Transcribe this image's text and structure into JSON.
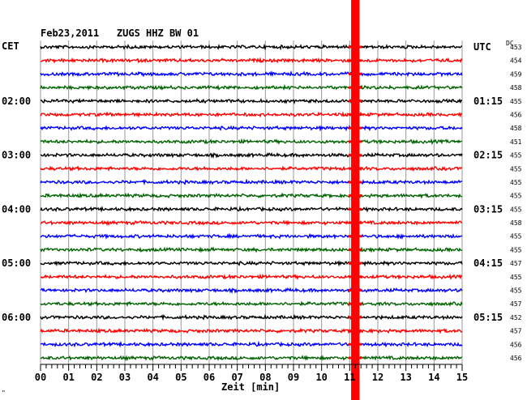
{
  "chart_data": {
    "type": "line",
    "title": "Feb23,2011   ZUGS HHZ BW 01",
    "left_axis_label": "CET",
    "right_axis_label": "UTC",
    "dc_label": "DC",
    "xlabel": "Zeit [min]",
    "xlim": [
      0,
      15
    ],
    "x_ticks": [
      "00",
      "01",
      "02",
      "03",
      "04",
      "05",
      "06",
      "07",
      "08",
      "09",
      "10",
      "11",
      "12",
      "13",
      "14",
      "15"
    ],
    "minor_ticks_per_minute": 5,
    "grid": true,
    "trace_count": 24,
    "trace_colors": [
      "#000000",
      "#ff0000",
      "#0000ff",
      "#006400"
    ],
    "cet_labels": [
      {
        "trace": 4,
        "text": "02:00"
      },
      {
        "trace": 8,
        "text": "03:00"
      },
      {
        "trace": 12,
        "text": "04:00"
      },
      {
        "trace": 16,
        "text": "05:00"
      },
      {
        "trace": 20,
        "text": "06:00"
      }
    ],
    "utc_labels": [
      {
        "trace": 0,
        "text": "UTC"
      },
      {
        "trace": 4,
        "text": "01:15"
      },
      {
        "trace": 8,
        "text": "02:15"
      },
      {
        "trace": 12,
        "text": "03:15"
      },
      {
        "trace": 16,
        "text": "04:15"
      },
      {
        "trace": 20,
        "text": "05:15"
      }
    ],
    "dc_values": [
      "453",
      "454",
      "459",
      "458",
      "455",
      "456",
      "458",
      "451",
      "455",
      "455",
      "455",
      "455",
      "455",
      "458",
      "455",
      "455",
      "457",
      "455",
      "455",
      "457",
      "452",
      "457",
      "456",
      "456"
    ],
    "event": {
      "minute_start": 11.05,
      "minute_end": 11.35,
      "color": "#ff0000"
    },
    "footer_mark": "\""
  }
}
